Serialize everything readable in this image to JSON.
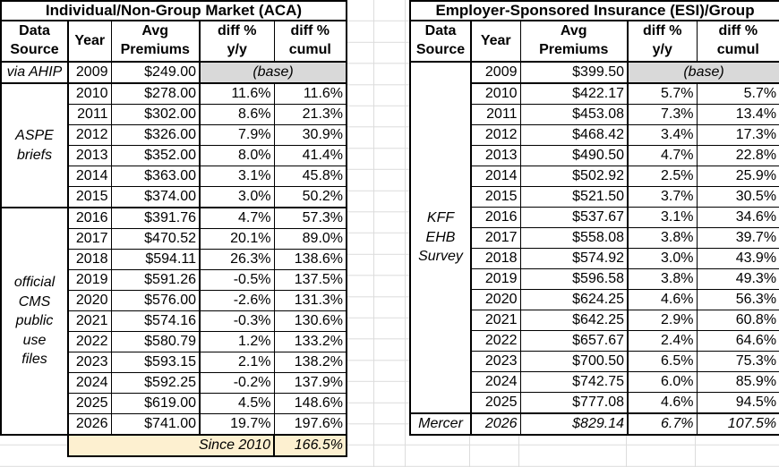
{
  "colors": {
    "border": "#000000",
    "base_cell_bg": "#d9d9d9",
    "footer_bg": "#fdf0d0",
    "sheet_gridline": "#dcdcdc"
  },
  "left_table": {
    "title": "Individual/Non-Group Market (ACA)",
    "col_headers": [
      "Data\nSource",
      "Year",
      "Avg\nPremiums",
      "diff %\ny/y",
      "diff %\ncumul"
    ],
    "source_groups": [
      {
        "label": "via AHIP",
        "rows": 1
      },
      {
        "label": "ASPE\nbriefs",
        "rows": 6
      },
      {
        "label": "official\nCMS\npublic\nuse\nfiles",
        "rows": 11
      }
    ],
    "rows": [
      {
        "year": "2009",
        "premium": "$249.00",
        "note": "(base)",
        "base": true
      },
      {
        "year": "2010",
        "premium": "$278.00",
        "yy": "11.6%",
        "cumul": "11.6%"
      },
      {
        "year": "2011",
        "premium": "$302.00",
        "yy": "8.6%",
        "cumul": "21.3%"
      },
      {
        "year": "2012",
        "premium": "$326.00",
        "yy": "7.9%",
        "cumul": "30.9%"
      },
      {
        "year": "2013",
        "premium": "$352.00",
        "yy": "8.0%",
        "cumul": "41.4%"
      },
      {
        "year": "2014",
        "premium": "$363.00",
        "yy": "3.1%",
        "cumul": "45.8%"
      },
      {
        "year": "2015",
        "premium": "$374.00",
        "yy": "3.0%",
        "cumul": "50.2%"
      },
      {
        "year": "2016",
        "premium": "$391.76",
        "yy": "4.7%",
        "cumul": "57.3%"
      },
      {
        "year": "2017",
        "premium": "$470.52",
        "yy": "20.1%",
        "cumul": "89.0%"
      },
      {
        "year": "2018",
        "premium": "$594.11",
        "yy": "26.3%",
        "cumul": "138.6%"
      },
      {
        "year": "2019",
        "premium": "$591.26",
        "yy": "-0.5%",
        "cumul": "137.5%"
      },
      {
        "year": "2020",
        "premium": "$576.00",
        "yy": "-2.6%",
        "cumul": "131.3%"
      },
      {
        "year": "2021",
        "premium": "$574.16",
        "yy": "-0.3%",
        "cumul": "130.6%"
      },
      {
        "year": "2022",
        "premium": "$580.79",
        "yy": "1.2%",
        "cumul": "133.2%"
      },
      {
        "year": "2023",
        "premium": "$593.15",
        "yy": "2.1%",
        "cumul": "138.2%"
      },
      {
        "year": "2024",
        "premium": "$592.25",
        "yy": "-0.2%",
        "cumul": "137.9%"
      },
      {
        "year": "2025",
        "premium": "$619.00",
        "yy": "4.5%",
        "cumul": "148.6%"
      },
      {
        "year": "2026",
        "premium": "$741.00",
        "yy": "19.7%",
        "cumul": "197.6%"
      }
    ],
    "footer": {
      "label": "Since 2010",
      "value": "166.5%"
    }
  },
  "right_table": {
    "title": "Employer-Sponsored Insurance (ESI)/Group",
    "col_headers": [
      "Data\nSource",
      "Year",
      "Avg\nPremiums",
      "diff %\ny/y",
      "diff %\ncumul"
    ],
    "source_groups": [
      {
        "label": "KFF\nEHB\nSurvey",
        "rows": 17
      },
      {
        "label": "Mercer",
        "rows": 1
      }
    ],
    "rows": [
      {
        "year": "2009",
        "premium": "$399.50",
        "note": "(base)",
        "base": true
      },
      {
        "year": "2010",
        "premium": "$422.17",
        "yy": "5.7%",
        "cumul": "5.7%"
      },
      {
        "year": "2011",
        "premium": "$453.08",
        "yy": "7.3%",
        "cumul": "13.4%"
      },
      {
        "year": "2012",
        "premium": "$468.42",
        "yy": "3.4%",
        "cumul": "17.3%"
      },
      {
        "year": "2013",
        "premium": "$490.50",
        "yy": "4.7%",
        "cumul": "22.8%"
      },
      {
        "year": "2014",
        "premium": "$502.92",
        "yy": "2.5%",
        "cumul": "25.9%"
      },
      {
        "year": "2015",
        "premium": "$521.50",
        "yy": "3.7%",
        "cumul": "30.5%"
      },
      {
        "year": "2016",
        "premium": "$537.67",
        "yy": "3.1%",
        "cumul": "34.6%"
      },
      {
        "year": "2017",
        "premium": "$558.08",
        "yy": "3.8%",
        "cumul": "39.7%"
      },
      {
        "year": "2018",
        "premium": "$574.92",
        "yy": "3.0%",
        "cumul": "43.9%"
      },
      {
        "year": "2019",
        "premium": "$596.58",
        "yy": "3.8%",
        "cumul": "49.3%"
      },
      {
        "year": "2020",
        "premium": "$624.25",
        "yy": "4.6%",
        "cumul": "56.3%"
      },
      {
        "year": "2021",
        "premium": "$642.25",
        "yy": "2.9%",
        "cumul": "60.8%"
      },
      {
        "year": "2022",
        "premium": "$657.67",
        "yy": "2.4%",
        "cumul": "64.6%"
      },
      {
        "year": "2023",
        "premium": "$700.50",
        "yy": "6.5%",
        "cumul": "75.3%"
      },
      {
        "year": "2024",
        "premium": "$742.75",
        "yy": "6.0%",
        "cumul": "85.9%"
      },
      {
        "year": "2025",
        "premium": "$777.08",
        "yy": "4.6%",
        "cumul": "94.5%"
      },
      {
        "year": "2026",
        "premium": "$829.14",
        "yy": "6.7%",
        "cumul": "107.5%",
        "italic": true
      }
    ]
  }
}
